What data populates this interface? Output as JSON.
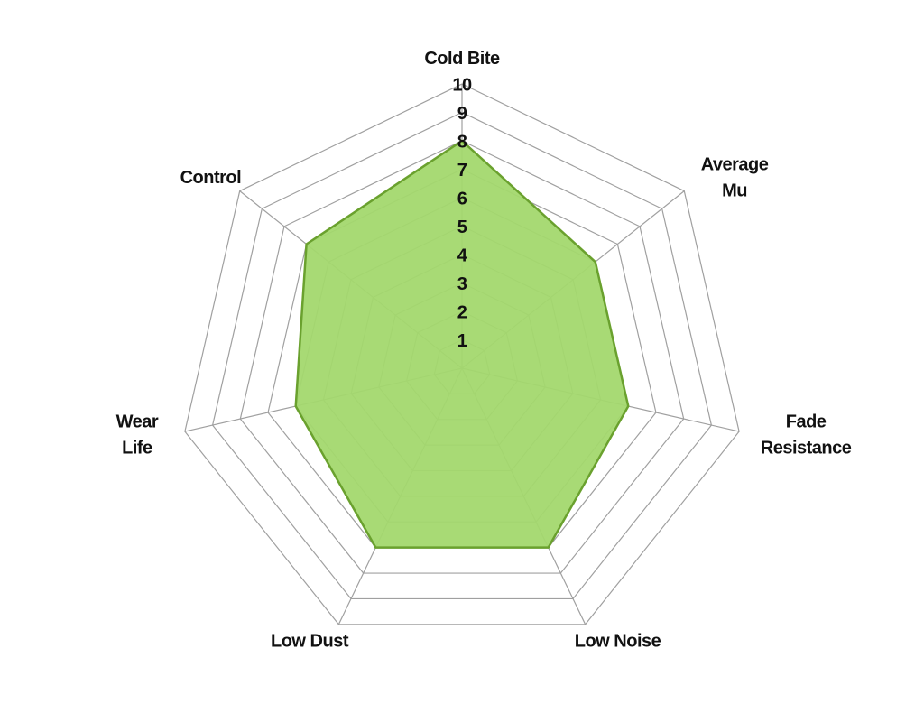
{
  "chart_data": {
    "type": "radar",
    "categories": [
      [
        "Cold Bite"
      ],
      [
        "Average",
        "Mu"
      ],
      [
        "Fade",
        "Resistance"
      ],
      [
        "Low Noise"
      ],
      [
        "Low Dust"
      ],
      [
        "Wear",
        "Life"
      ],
      [
        "Control"
      ]
    ],
    "values": [
      8,
      6,
      6,
      7,
      7,
      6,
      7
    ],
    "color": "#a3d86e",
    "line_color": "#6aa12e",
    "ylim": [
      0,
      10
    ],
    "yticks": [
      1,
      2,
      3,
      4,
      5,
      6,
      7,
      8,
      9,
      10
    ],
    "grid": true
  }
}
